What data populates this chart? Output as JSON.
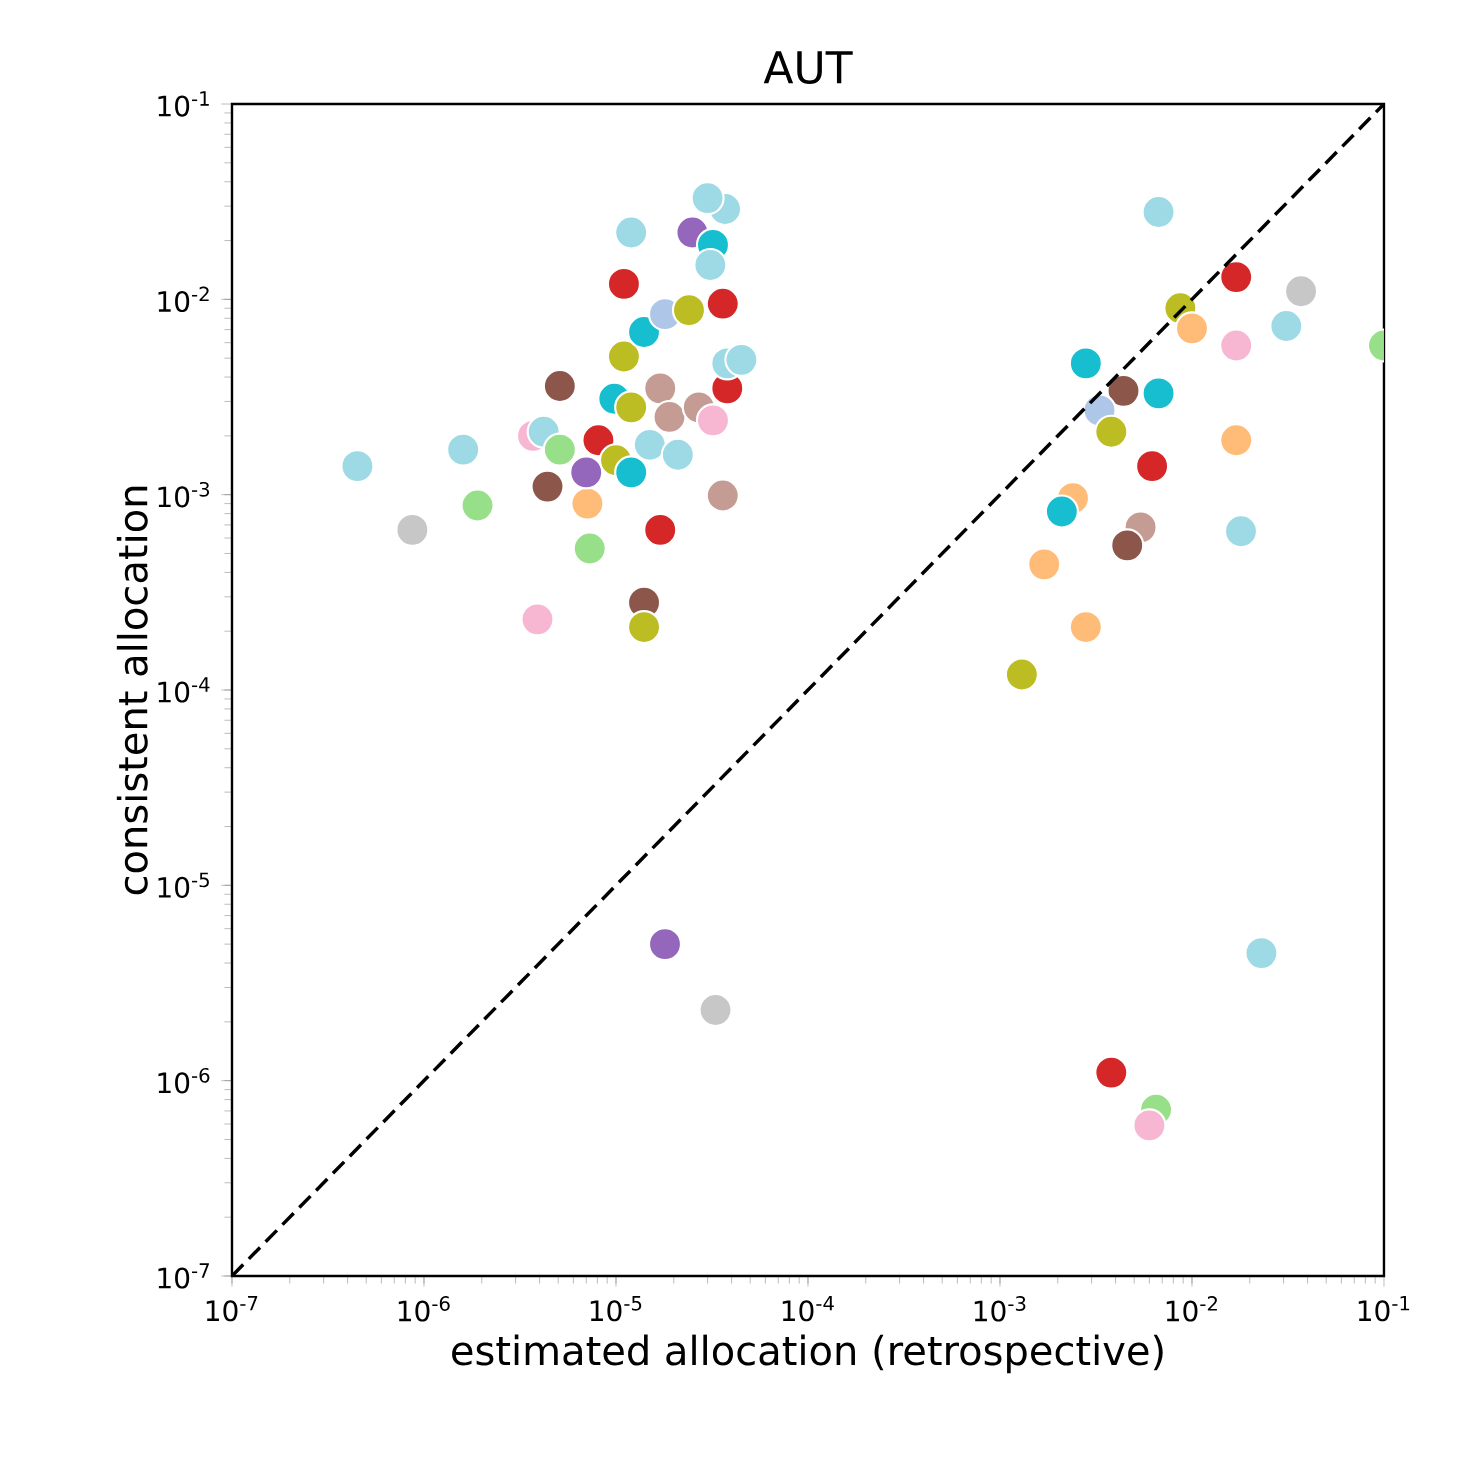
{
  "chart_data": {
    "type": "scatter",
    "title": "AUT",
    "xlabel": "estimated allocation (retrospective)",
    "ylabel": "consistent allocation",
    "log": "xy",
    "marker": "circle",
    "xlim": [
      1e-07,
      0.1
    ],
    "ylim": [
      1e-07,
      0.1
    ],
    "xticks": [
      {
        "value": 1e-07,
        "label": "10$^{-7}$"
      },
      {
        "value": 1e-06,
        "label": "10$^{-6}$"
      },
      {
        "value": 1e-05,
        "label": "10$^{-5}$"
      },
      {
        "value": 0.0001,
        "label": "10$^{-4}$"
      },
      {
        "value": 0.001,
        "label": "10$^{-3}$"
      },
      {
        "value": 0.01,
        "label": "10$^{-2}$"
      },
      {
        "value": 0.1,
        "label": "10$^{-1}$"
      }
    ],
    "yticks": [
      {
        "value": 1e-07,
        "label": "10$^{-7}$"
      },
      {
        "value": 1e-06,
        "label": "10$^{-6}$"
      },
      {
        "value": 1e-05,
        "label": "10$^{-5}$"
      },
      {
        "value": 0.0001,
        "label": "10$^{-4}$"
      },
      {
        "value": 0.001,
        "label": "10$^{-3}$"
      },
      {
        "value": 0.01,
        "label": "10$^{-2}$"
      },
      {
        "value": 0.1,
        "label": "10$^{-1}$"
      }
    ],
    "series": [
      {
        "x": [
          4.5e-07,
          1.6e-06,
          8.7e-07,
          1.9e-06,
          3.9e-06,
          5.1e-06,
          3.7e-06,
          4.2e-06,
          5.1e-06,
          4.4e-06,
          7.3e-06,
          7.1e-06,
          7e-06,
          8.1e-06,
          1e-05,
          1.2e-05,
          9.8e-06,
          1.2e-05,
          1.5e-05,
          2.1e-05,
          1.7e-05,
          1.9e-05,
          2.7e-05,
          3.2e-05,
          3.8e-05,
          3.6e-05,
          1.7e-05,
          1.4e-05,
          1.4e-05,
          1.1e-05,
          1.1e-05,
          1.4e-05,
          1.8e-05,
          2.4e-05,
          3.6e-05,
          3.8e-05,
          4.5e-05,
          1.2e-05,
          2.5e-05,
          3.2e-05,
          3.1e-05,
          3.7e-05,
          3e-05,
          0.0067,
          0.017,
          0.037,
          0.0087,
          0.01,
          0.017,
          0.031,
          0.0028,
          0.0044,
          0.0067,
          0.0033,
          0.0038,
          0.017,
          0.0062,
          0.0024,
          0.0021,
          0.0054,
          0.0046,
          0.018,
          0.0017,
          0.0028,
          0.0013,
          0.1,
          1.8e-05,
          3.3e-05,
          0.0038,
          0.0065,
          0.006,
          0.023
        ],
        "values": [
          0.0014,
          0.0017,
          0.00066,
          0.00088,
          0.00023,
          0.0036,
          0.002,
          0.0021,
          0.0017,
          0.0011,
          0.00053,
          0.0009,
          0.0013,
          0.0019,
          0.0015,
          0.0013,
          0.0031,
          0.0028,
          0.0018,
          0.0016,
          0.0035,
          0.0025,
          0.0028,
          0.0024,
          0.0035,
          0.00099,
          0.00066,
          0.00028,
          0.00021,
          0.012,
          0.0051,
          0.0068,
          0.0084,
          0.0088,
          0.0095,
          0.0047,
          0.0049,
          0.022,
          0.022,
          0.019,
          0.015,
          0.029,
          0.033,
          0.028,
          0.013,
          0.011,
          0.009,
          0.0071,
          0.0058,
          0.0073,
          0.0047,
          0.0034,
          0.0033,
          0.0027,
          0.0021,
          0.0019,
          0.0014,
          0.00096,
          0.00082,
          0.00068,
          0.00055,
          0.00065,
          0.00044,
          0.00021,
          0.00012,
          0.0058,
          5e-06,
          2.3e-06,
          1.1e-06,
          7.1e-07,
          5.9e-07,
          4.5e-06
        ],
        "colors": [
          "#9edae5",
          "#9edae5",
          "#c7c7c7",
          "#98df8a",
          "#f7b6d2",
          "#8c564b",
          "#f7b6d2",
          "#9edae5",
          "#98df8a",
          "#8c564b",
          "#98df8a",
          "#ffbb78",
          "#9467bd",
          "#d62728",
          "#bcbd22",
          "#17becf",
          "#17becf",
          "#bcbd22",
          "#9edae5",
          "#9edae5",
          "#c49c94",
          "#c49c94",
          "#c49c94",
          "#f7b6d2",
          "#d62728",
          "#c49c94",
          "#d62728",
          "#8c564b",
          "#bcbd22",
          "#d62728",
          "#bcbd22",
          "#17becf",
          "#aec7e8",
          "#bcbd22",
          "#d62728",
          "#9edae5",
          "#9edae5",
          "#9edae5",
          "#9467bd",
          "#17becf",
          "#9edae5",
          "#9edae5",
          "#9edae5",
          "#9edae5",
          "#d62728",
          "#c7c7c7",
          "#bcbd22",
          "#ffbb78",
          "#f7b6d2",
          "#9edae5",
          "#17becf",
          "#8c564b",
          "#17becf",
          "#aec7e8",
          "#bcbd22",
          "#ffbb78",
          "#d62728",
          "#ffbb78",
          "#17becf",
          "#c49c94",
          "#8c564b",
          "#9edae5",
          "#ffbb78",
          "#ffbb78",
          "#bcbd22",
          "#98df8a",
          "#9467bd",
          "#c7c7c7",
          "#d62728",
          "#98df8a",
          "#f7b6d2",
          "#9edae5"
        ]
      },
      {
        "type": "line",
        "x": [
          1e-07,
          0.1
        ],
        "values": [
          1e-07,
          0.1
        ],
        "color": "#000000",
        "line_style": "dashed",
        "marker": "none"
      }
    ]
  }
}
